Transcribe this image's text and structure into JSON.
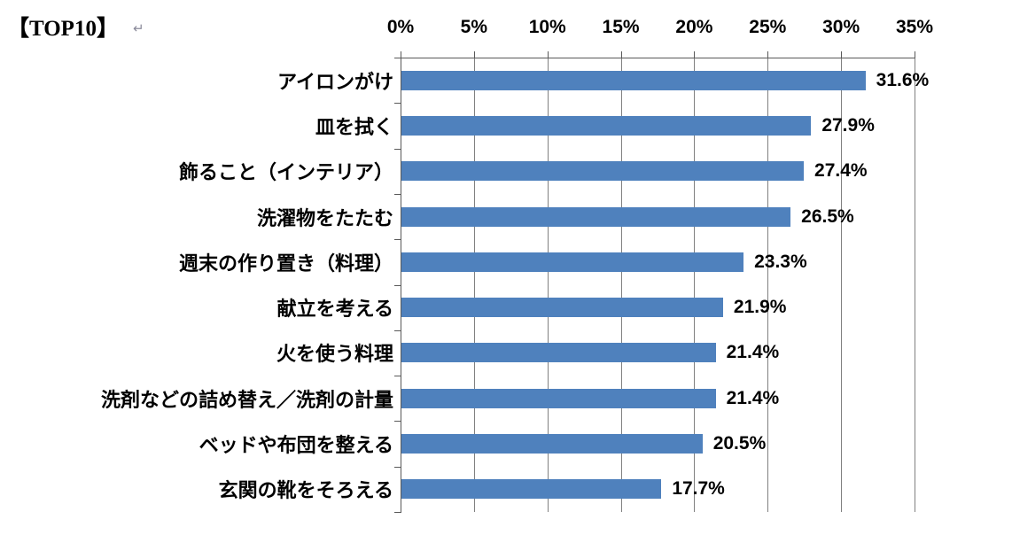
{
  "title": {
    "text": "【TOP10】",
    "return_mark": "↵"
  },
  "chart_data": {
    "type": "bar",
    "orientation": "horizontal",
    "title": "【TOP10】",
    "categories": [
      "アイロンがけ",
      "皿を拭く",
      "飾ること（インテリア）",
      "洗濯物をたたむ",
      "週末の作り置き（料理）",
      "献立を考える",
      "火を使う料理",
      "洗剤などの詰め替え／洗剤の計量",
      "ベッドや布団を整える",
      "玄関の靴をそろえる"
    ],
    "values": [
      31.6,
      27.9,
      27.4,
      26.5,
      23.3,
      21.9,
      21.4,
      21.4,
      20.5,
      17.7
    ],
    "value_labels": [
      "31.6%",
      "27.9%",
      "27.4%",
      "26.5%",
      "23.3%",
      "21.9%",
      "21.4%",
      "21.4%",
      "20.5%",
      "17.7%"
    ],
    "x_tick_labels": [
      "0%",
      "5%",
      "10%",
      "15%",
      "20%",
      "25%",
      "30%",
      "35%"
    ],
    "xlim": [
      0,
      35
    ],
    "grid": true,
    "legend": "none",
    "axis_position": "top",
    "bar_color": "#4F81BD",
    "gridline_color": "#808080",
    "axis_color": "#595959",
    "text_color": "#000000"
  }
}
